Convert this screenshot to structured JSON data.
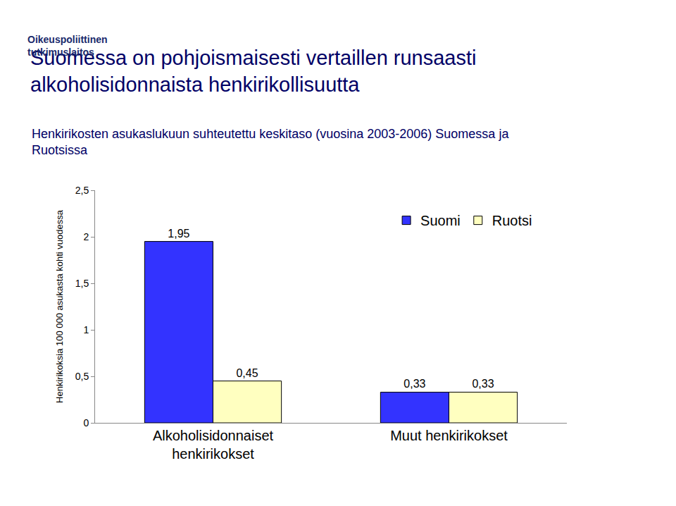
{
  "chart_data": {
    "type": "bar",
    "title": "Suomessa on pohjoismaisesti vertaillen runsaasti alkoholisidonnaista henkirikollisuutta",
    "subtitle": "Henkirikosten asukaslukuun suhteutettu keskitaso (vuosina 2003-2006) Suomessa ja Ruotsissa",
    "annotations": [
      "Oikeuspoliittinen",
      "tutkimuslaitos"
    ],
    "y_label": "Henkirikoksia 100 000 asukasta kohti vuodessa",
    "categories": [
      "Alkoholisidonnaiset henkirikokset",
      "Muut henkirikokset"
    ],
    "series": [
      {
        "name": "Suomi",
        "color": "#3333ff",
        "values": [
          1.95,
          0.33
        ],
        "value_labels": [
          "1,95",
          "0,33"
        ]
      },
      {
        "name": "Ruotsi",
        "color": "#ffffc0",
        "values": [
          0.45,
          0.33
        ],
        "value_labels": [
          "0,45",
          "0,33"
        ]
      }
    ],
    "ylim": [
      0,
      2.5
    ],
    "yticks": [
      0,
      {
        "value": 0.5,
        "label": "0,5"
      },
      1,
      {
        "value": 1.5,
        "label": "1,5"
      },
      2,
      {
        "value": 2.5,
        "label": "2,5"
      }
    ],
    "grid": false,
    "legend": "top right",
    "data_labels": true
  }
}
